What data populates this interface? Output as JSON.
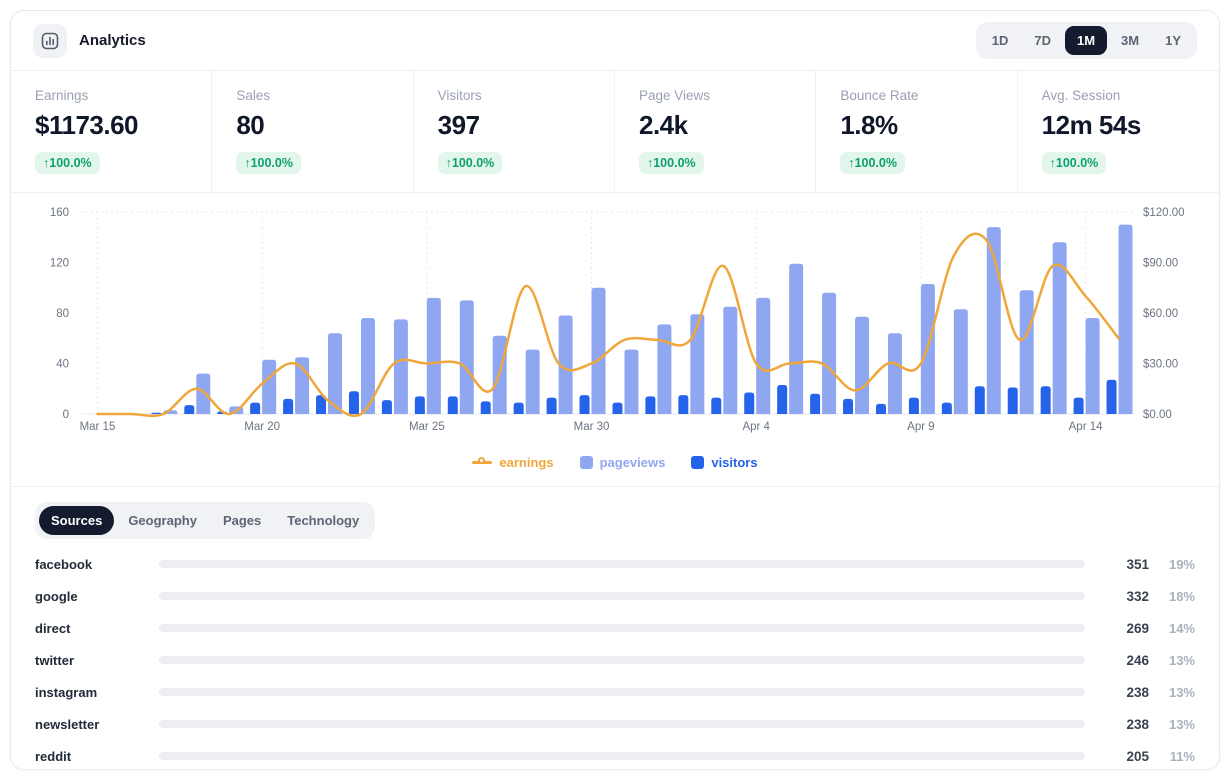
{
  "header": {
    "title": "Analytics",
    "ranges": [
      "1D",
      "7D",
      "1M",
      "3M",
      "1Y"
    ],
    "active_range": "1M"
  },
  "stats": [
    {
      "label": "Earnings",
      "value": "$1173.60",
      "change": "↑100.0%"
    },
    {
      "label": "Sales",
      "value": "80",
      "change": "↑100.0%"
    },
    {
      "label": "Visitors",
      "value": "397",
      "change": "↑100.0%"
    },
    {
      "label": "Page Views",
      "value": "2.4k",
      "change": "↑100.0%"
    },
    {
      "label": "Bounce Rate",
      "value": "1.8%",
      "change": "↑100.0%"
    },
    {
      "label": "Avg. Session",
      "value": "12m 54s",
      "change": "↑100.0%"
    }
  ],
  "chart_data": {
    "type": "combo",
    "x": [
      "Mar 15",
      "Mar 16",
      "Mar 17",
      "Mar 18",
      "Mar 19",
      "Mar 20",
      "Mar 21",
      "Mar 22",
      "Mar 23",
      "Mar 24",
      "Mar 25",
      "Mar 26",
      "Mar 27",
      "Mar 28",
      "Mar 29",
      "Mar 30",
      "Mar 31",
      "Apr 1",
      "Apr 2",
      "Apr 3",
      "Apr 4",
      "Apr 5",
      "Apr 6",
      "Apr 7",
      "Apr 8",
      "Apr 9",
      "Apr 10",
      "Apr 11",
      "Apr 12",
      "Apr 13",
      "Apr 14",
      "Apr 15"
    ],
    "x_tick_every": 5,
    "series": [
      {
        "name": "earnings",
        "type": "line",
        "axis": "right",
        "color": "#f1a63b",
        "values": [
          0,
          0,
          0,
          15,
          0,
          18,
          30,
          8,
          0,
          30,
          30,
          30,
          15,
          76,
          30,
          30,
          44,
          44,
          44,
          88,
          30,
          30,
          30,
          14,
          30,
          30,
          94,
          103,
          44,
          88,
          70,
          45
        ]
      },
      {
        "name": "pageviews",
        "type": "bar",
        "axis": "left",
        "color": "#8fa7f0",
        "values": [
          0,
          0,
          3,
          32,
          6,
          43,
          45,
          64,
          76,
          75,
          92,
          90,
          62,
          51,
          78,
          100,
          51,
          71,
          79,
          85,
          92,
          119,
          96,
          77,
          64,
          103,
          83,
          148,
          98,
          136,
          76,
          150
        ]
      },
      {
        "name": "visitors",
        "type": "bar",
        "axis": "left",
        "color": "#2563eb",
        "values": [
          0,
          0,
          1,
          7,
          2,
          9,
          12,
          15,
          18,
          11,
          14,
          14,
          10,
          9,
          13,
          15,
          9,
          14,
          15,
          13,
          17,
          23,
          16,
          12,
          8,
          13,
          9,
          22,
          21,
          22,
          13,
          27
        ]
      }
    ],
    "left_axis": {
      "tick_values": [
        0,
        40,
        80,
        120,
        160
      ],
      "max": 160
    },
    "right_axis": {
      "tick_values": [
        0,
        30,
        60,
        90,
        120
      ],
      "tick_labels": [
        "$0.00",
        "$30.00",
        "$60.00",
        "$90.00",
        "$120.00"
      ],
      "max": 120
    },
    "grid": "dotted vertical lines at labeled x ticks, dotted top border, solid baseline",
    "legend_position": "bottom-center"
  },
  "legend": [
    {
      "name": "earnings",
      "type": "line",
      "color": "#f1a63b"
    },
    {
      "name": "pageviews",
      "type": "bar",
      "color": "#8fa7f0"
    },
    {
      "name": "visitors",
      "type": "bar",
      "color": "#2563eb"
    }
  ],
  "tabs": {
    "items": [
      "Sources",
      "Geography",
      "Pages",
      "Technology"
    ],
    "active": "Sources"
  },
  "sources": {
    "rows": [
      {
        "label": "facebook",
        "value": 351,
        "percent": "19%"
      },
      {
        "label": "google",
        "value": 332,
        "percent": "18%"
      },
      {
        "label": "direct",
        "value": 269,
        "percent": "14%"
      },
      {
        "label": "twitter",
        "value": 246,
        "percent": "13%"
      },
      {
        "label": "instagram",
        "value": 238,
        "percent": "13%"
      },
      {
        "label": "newsletter",
        "value": 238,
        "percent": "13%"
      },
      {
        "label": "reddit",
        "value": 205,
        "percent": "11%"
      }
    ]
  },
  "colors": {
    "accent_orange": "#f1a63b",
    "bar_light_blue": "#8fa7f0",
    "bar_blue": "#2563eb",
    "badge_green": "#0e9f6e",
    "badge_green_bg": "#e3f6ec",
    "active_pill": "#151b2e",
    "source_bar_gradient_start": "#7d8df2",
    "source_bar_gradient_end": "#8c3ef4",
    "muted_text": "#99a1b0",
    "axis_text": "#6b7483"
  }
}
